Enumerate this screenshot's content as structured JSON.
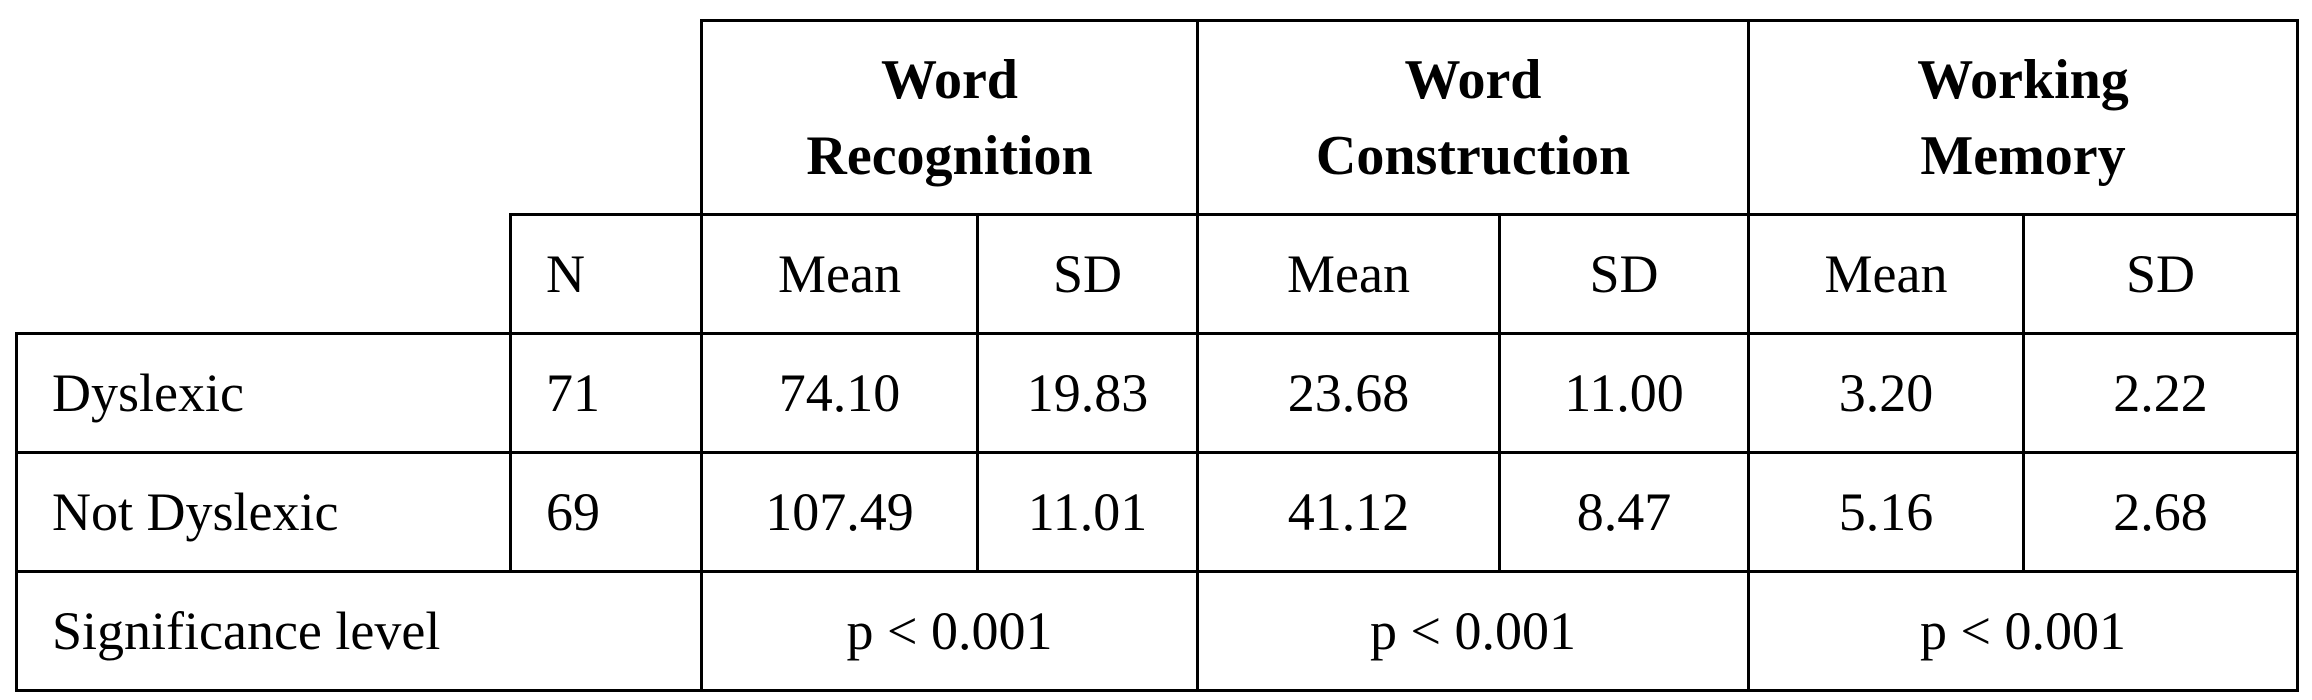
{
  "table": {
    "groups": [
      "Word Recognition",
      "Word Construction",
      "Working Memory"
    ],
    "subheader": [
      "N",
      "Mean",
      "SD",
      "Mean",
      "SD",
      "Mean",
      "SD"
    ],
    "rows": [
      {
        "label": "Dyslexic",
        "cells": [
          "71",
          "74.10",
          "19.83",
          "23.68",
          "11.00",
          "3.20",
          "2.22"
        ]
      },
      {
        "label": "Not Dyslexic",
        "cells": [
          "69",
          "107.49",
          "11.01",
          "41.12",
          "8.47",
          "5.16",
          "2.68"
        ]
      }
    ],
    "significance": {
      "label": "Significance level",
      "values": [
        "p < 0.001",
        "p < 0.001",
        "p < 0.001"
      ]
    }
  }
}
